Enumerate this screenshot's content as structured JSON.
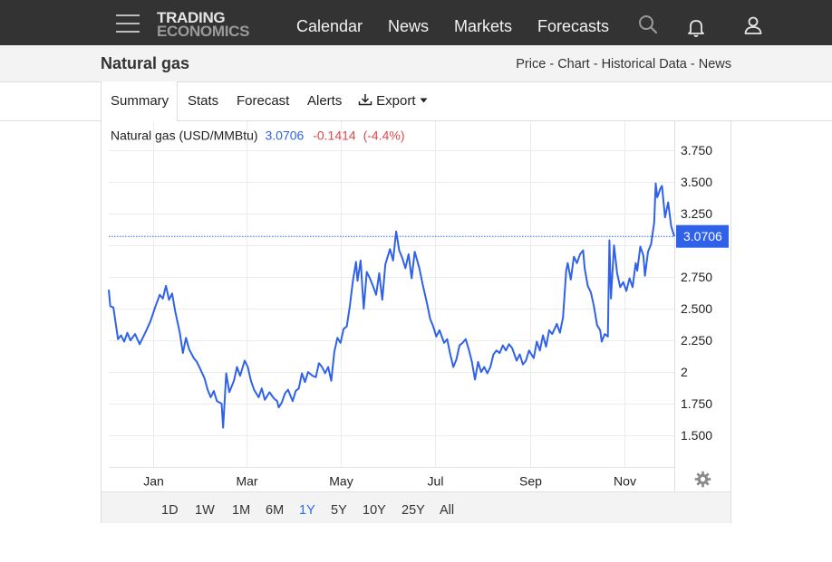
{
  "brand": {
    "line1": "TRADING",
    "line2": "ECONOMICS"
  },
  "nav": {
    "items": [
      "Calendar",
      "News",
      "Markets",
      "Forecasts"
    ]
  },
  "icons": {
    "menu": "hamburger-icon",
    "search": "search-icon",
    "notifications": "bell-icon",
    "account": "user-icon",
    "settings": "gear-icon",
    "export": "download-icon"
  },
  "page": {
    "title": "Natural gas",
    "links": [
      "Price",
      "Chart",
      "Historical Data",
      "News"
    ],
    "link_separator": " - "
  },
  "tabs": {
    "summary": "Summary",
    "stats": "Stats",
    "forecast": "Forecast",
    "alerts": "Alerts",
    "export": "Export"
  },
  "ranges": {
    "items": [
      "1D",
      "1W",
      "1M",
      "6M",
      "1Y",
      "5Y",
      "10Y",
      "25Y",
      "All"
    ],
    "active": "1Y"
  },
  "colors": {
    "line": "#2f62e8",
    "negative": "#e0474c",
    "label_bg": "#2f62e8"
  },
  "chart_data": {
    "type": "line",
    "title": "Natural gas (USD/MMBtu)",
    "last_value": "3.0706",
    "change": "-0.1414",
    "change_pct": "(-4.4%)",
    "current_label": "3.0706",
    "current_value": 3.0706,
    "y_ticks": [
      3.75,
      3.5,
      3.25,
      2.75,
      2.5,
      2.25,
      2,
      1.75,
      1.5
    ],
    "y_tick_labels": [
      "3.750",
      "3.500",
      "3.250",
      "2.750",
      "2.500",
      "2.250",
      "2",
      "1.750",
      "1.500"
    ],
    "ylim": [
      1.25,
      3.98
    ],
    "x_ticks": [
      "2024-01-01",
      "2024-03-01",
      "2024-05-01",
      "2024-07-01",
      "2024-09-01",
      "2024-11-01"
    ],
    "x_tick_labels": [
      "Jan",
      "Mar",
      "May",
      "Jul",
      "Sep",
      "Nov"
    ],
    "xlim": [
      "2023-12-03",
      "2024-12-03"
    ],
    "grid": true,
    "series": [
      {
        "values": [
          [
            "2023-12-03",
            2.65
          ],
          [
            "2023-12-04",
            2.52
          ],
          [
            "2023-12-06",
            2.51
          ],
          [
            "2023-12-09",
            2.26
          ],
          [
            "2023-12-11",
            2.29
          ],
          [
            "2023-12-13",
            2.24
          ],
          [
            "2023-12-15",
            2.31
          ],
          [
            "2023-12-17",
            2.25
          ],
          [
            "2023-12-20",
            2.3
          ],
          [
            "2023-12-23",
            2.22
          ],
          [
            "2023-12-27",
            2.32
          ],
          [
            "2023-12-30",
            2.4
          ],
          [
            "2024-01-02",
            2.51
          ],
          [
            "2024-01-05",
            2.61
          ],
          [
            "2024-01-07",
            2.58
          ],
          [
            "2024-01-09",
            2.68
          ],
          [
            "2024-01-11",
            2.57
          ],
          [
            "2024-01-13",
            2.62
          ],
          [
            "2024-01-15",
            2.48
          ],
          [
            "2024-01-18",
            2.31
          ],
          [
            "2024-01-20",
            2.15
          ],
          [
            "2024-01-22",
            2.27
          ],
          [
            "2024-01-24",
            2.18
          ],
          [
            "2024-01-27",
            2.11
          ],
          [
            "2024-01-29",
            2.08
          ],
          [
            "2024-01-31",
            2.03
          ],
          [
            "2024-02-03",
            1.95
          ],
          [
            "2024-02-05",
            1.86
          ],
          [
            "2024-02-07",
            1.8
          ],
          [
            "2024-02-09",
            1.85
          ],
          [
            "2024-02-11",
            1.77
          ],
          [
            "2024-02-14",
            1.75
          ],
          [
            "2024-02-15",
            1.56
          ],
          [
            "2024-02-17",
            1.99
          ],
          [
            "2024-02-19",
            1.84
          ],
          [
            "2024-02-22",
            1.93
          ],
          [
            "2024-02-24",
            2.04
          ],
          [
            "2024-02-26",
            1.97
          ],
          [
            "2024-02-29",
            2.09
          ],
          [
            "2024-03-02",
            2.04
          ],
          [
            "2024-03-04",
            1.93
          ],
          [
            "2024-03-06",
            1.86
          ],
          [
            "2024-03-09",
            1.8
          ],
          [
            "2024-03-11",
            1.87
          ],
          [
            "2024-03-13",
            1.78
          ],
          [
            "2024-03-16",
            1.84
          ],
          [
            "2024-03-19",
            1.79
          ],
          [
            "2024-03-21",
            1.77
          ],
          [
            "2024-03-22",
            1.72
          ],
          [
            "2024-03-24",
            1.76
          ],
          [
            "2024-03-26",
            1.83
          ],
          [
            "2024-03-28",
            1.86
          ],
          [
            "2024-03-31",
            1.77
          ],
          [
            "2024-04-02",
            1.85
          ],
          [
            "2024-04-04",
            1.87
          ],
          [
            "2024-04-06",
            1.99
          ],
          [
            "2024-04-08",
            1.92
          ],
          [
            "2024-04-10",
            2.0
          ],
          [
            "2024-04-13",
            1.97
          ],
          [
            "2024-04-15",
            1.96
          ],
          [
            "2024-04-17",
            2.07
          ],
          [
            "2024-04-19",
            2.04
          ],
          [
            "2024-04-21",
            1.99
          ],
          [
            "2024-04-23",
            2.04
          ],
          [
            "2024-04-25",
            1.93
          ],
          [
            "2024-04-27",
            2.16
          ],
          [
            "2024-04-29",
            2.27
          ],
          [
            "2024-05-01",
            2.23
          ],
          [
            "2024-05-03",
            2.34
          ],
          [
            "2024-05-05",
            2.36
          ],
          [
            "2024-05-07",
            2.52
          ],
          [
            "2024-05-09",
            2.72
          ],
          [
            "2024-05-11",
            2.87
          ],
          [
            "2024-05-12",
            2.72
          ],
          [
            "2024-05-14",
            2.88
          ],
          [
            "2024-05-16",
            2.5
          ],
          [
            "2024-05-18",
            2.79
          ],
          [
            "2024-05-20",
            2.74
          ],
          [
            "2024-05-22",
            2.68
          ],
          [
            "2024-05-24",
            2.61
          ],
          [
            "2024-05-26",
            2.78
          ],
          [
            "2024-05-28",
            2.57
          ],
          [
            "2024-05-30",
            2.85
          ],
          [
            "2024-06-02",
            2.97
          ],
          [
            "2024-06-04",
            2.88
          ],
          [
            "2024-06-06",
            3.11
          ],
          [
            "2024-06-08",
            2.96
          ],
          [
            "2024-06-10",
            2.9
          ],
          [
            "2024-06-12",
            2.82
          ],
          [
            "2024-06-14",
            2.93
          ],
          [
            "2024-06-16",
            2.74
          ],
          [
            "2024-06-18",
            2.95
          ],
          [
            "2024-06-21",
            2.82
          ],
          [
            "2024-06-23",
            2.7
          ],
          [
            "2024-06-26",
            2.54
          ],
          [
            "2024-06-28",
            2.42
          ],
          [
            "2024-06-30",
            2.36
          ],
          [
            "2024-07-02",
            2.28
          ],
          [
            "2024-07-04",
            2.33
          ],
          [
            "2024-07-07",
            2.23
          ],
          [
            "2024-07-09",
            2.26
          ],
          [
            "2024-07-11",
            2.14
          ],
          [
            "2024-07-13",
            2.04
          ],
          [
            "2024-07-15",
            2.1
          ],
          [
            "2024-07-17",
            2.21
          ],
          [
            "2024-07-19",
            2.23
          ],
          [
            "2024-07-21",
            2.26
          ],
          [
            "2024-07-23",
            2.18
          ],
          [
            "2024-07-25",
            2.08
          ],
          [
            "2024-07-27",
            1.94
          ],
          [
            "2024-07-29",
            2.08
          ],
          [
            "2024-07-31",
            2.0
          ],
          [
            "2024-08-02",
            2.04
          ],
          [
            "2024-08-04",
            1.99
          ],
          [
            "2024-08-06",
            2.04
          ],
          [
            "2024-08-08",
            2.14
          ],
          [
            "2024-08-10",
            2.17
          ],
          [
            "2024-08-12",
            2.15
          ],
          [
            "2024-08-14",
            2.21
          ],
          [
            "2024-08-16",
            2.17
          ],
          [
            "2024-08-18",
            2.22
          ],
          [
            "2024-08-20",
            2.19
          ],
          [
            "2024-08-23",
            2.09
          ],
          [
            "2024-08-25",
            2.14
          ],
          [
            "2024-08-27",
            2.06
          ],
          [
            "2024-08-29",
            2.09
          ],
          [
            "2024-08-31",
            2.17
          ],
          [
            "2024-09-03",
            2.11
          ],
          [
            "2024-09-05",
            2.24
          ],
          [
            "2024-09-07",
            2.17
          ],
          [
            "2024-09-09",
            2.29
          ],
          [
            "2024-09-11",
            2.2
          ],
          [
            "2024-09-13",
            2.33
          ],
          [
            "2024-09-15",
            2.3
          ],
          [
            "2024-09-18",
            2.38
          ],
          [
            "2024-09-20",
            2.31
          ],
          [
            "2024-09-22",
            2.43
          ],
          [
            "2024-09-24",
            2.8
          ],
          [
            "2024-09-25",
            2.86
          ],
          [
            "2024-09-27",
            2.73
          ],
          [
            "2024-09-29",
            2.91
          ],
          [
            "2024-10-01",
            2.86
          ],
          [
            "2024-10-03",
            2.93
          ],
          [
            "2024-10-05",
            2.96
          ],
          [
            "2024-10-06",
            2.82
          ],
          [
            "2024-10-08",
            2.68
          ],
          [
            "2024-10-10",
            2.63
          ],
          [
            "2024-10-12",
            2.52
          ],
          [
            "2024-10-14",
            2.37
          ],
          [
            "2024-10-16",
            2.33
          ],
          [
            "2024-10-17",
            2.24
          ],
          [
            "2024-10-19",
            2.3
          ],
          [
            "2024-10-21",
            2.28
          ],
          [
            "2024-10-22",
            3.04
          ],
          [
            "2024-10-23",
            2.58
          ],
          [
            "2024-10-25",
            3.0
          ],
          [
            "2024-10-27",
            2.78
          ],
          [
            "2024-10-29",
            2.67
          ],
          [
            "2024-10-31",
            2.71
          ],
          [
            "2024-11-02",
            2.64
          ],
          [
            "2024-11-04",
            2.74
          ],
          [
            "2024-11-06",
            2.67
          ],
          [
            "2024-11-08",
            2.86
          ],
          [
            "2024-11-09",
            2.8
          ],
          [
            "2024-11-11",
            2.99
          ],
          [
            "2024-11-13",
            2.92
          ],
          [
            "2024-11-14",
            2.76
          ],
          [
            "2024-11-16",
            2.95
          ],
          [
            "2024-11-18",
            3.01
          ],
          [
            "2024-11-20",
            3.18
          ],
          [
            "2024-11-21",
            3.49
          ],
          [
            "2024-11-22",
            3.38
          ],
          [
            "2024-11-24",
            3.45
          ],
          [
            "2024-11-25",
            3.47
          ],
          [
            "2024-11-27",
            3.22
          ],
          [
            "2024-11-29",
            3.34
          ],
          [
            "2024-12-01",
            3.15
          ],
          [
            "2024-12-03",
            3.07
          ]
        ]
      }
    ]
  }
}
